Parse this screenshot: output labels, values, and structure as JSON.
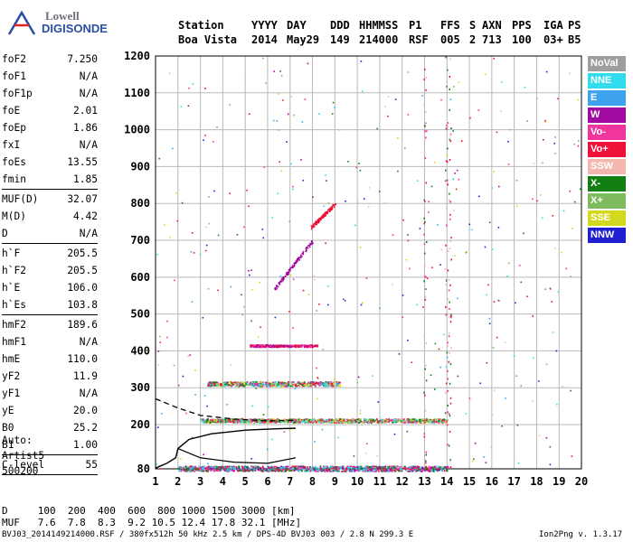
{
  "logo": {
    "line1": "Lowell",
    "line2": "DIGISONDE"
  },
  "header": {
    "labels": [
      "Station",
      "YYYY",
      "DAY",
      "DDD",
      "HHMMSS",
      "P1",
      "FFS",
      "S",
      "AXN",
      "PPS",
      "IGA",
      "PS"
    ],
    "values": [
      "Boa Vista",
      "2014",
      "May29",
      "149",
      "214000",
      "RSF",
      "005",
      "2",
      "713",
      "100",
      "03+",
      "B5"
    ]
  },
  "params": [
    {
      "k": "foF2",
      "v": "7.250"
    },
    {
      "k": "foF1",
      "v": "N/A"
    },
    {
      "k": "foF1p",
      "v": "N/A"
    },
    {
      "k": "foE",
      "v": "2.01"
    },
    {
      "k": "foEp",
      "v": "1.86"
    },
    {
      "k": "fxI",
      "v": "N/A"
    },
    {
      "k": "foEs",
      "v": "13.55"
    },
    {
      "k": "fmin",
      "v": "1.85"
    },
    {
      "sep": true
    },
    {
      "k": "MUF(D)",
      "v": "32.07"
    },
    {
      "k": "M(D)",
      "v": "4.42"
    },
    {
      "k": "D",
      "v": "N/A"
    },
    {
      "sep": true
    },
    {
      "k": "h`F",
      "v": "205.5"
    },
    {
      "k": "h`F2",
      "v": "205.5"
    },
    {
      "k": "h`E",
      "v": "106.0"
    },
    {
      "k": "h`Es",
      "v": "103.8"
    },
    {
      "sep": true
    },
    {
      "k": "hmF2",
      "v": "189.6"
    },
    {
      "k": "hmF1",
      "v": "N/A"
    },
    {
      "k": "hmE",
      "v": "110.0"
    },
    {
      "k": "yF2",
      "v": "11.9"
    },
    {
      "k": "yF1",
      "v": "N/A"
    },
    {
      "k": "yE",
      "v": "20.0"
    },
    {
      "k": "B0",
      "v": "25.2"
    },
    {
      "k": "B1",
      "v": "1.00"
    },
    {
      "sep": true
    },
    {
      "k": "C-level",
      "v": "55"
    },
    {
      "sep": true
    }
  ],
  "auto": [
    "Auto:",
    "Artist5",
    "500200"
  ],
  "legend": [
    {
      "label": "NoVal",
      "color": "#9e9e9e"
    },
    {
      "label": "NNE",
      "color": "#33dcec"
    },
    {
      "label": "E",
      "color": "#3fa2ee"
    },
    {
      "label": "W",
      "color": "#a10a9e"
    },
    {
      "label": "Vo-",
      "color": "#f0359f"
    },
    {
      "label": "Vo+",
      "color": "#ee1239"
    },
    {
      "label": "SSW",
      "color": "#f4b6ad"
    },
    {
      "label": "X-",
      "color": "#137e14"
    },
    {
      "label": "X+",
      "color": "#7ebb5c"
    },
    {
      "label": "SSE",
      "color": "#d3d91e"
    },
    {
      "label": "NNW",
      "color": "#2020d0"
    }
  ],
  "footer": {
    "d_line": "D     100  200  400  600  800 1000 1500 3000 [km]",
    "muf_line": "MUF   7.6  7.8  8.3  9.2 10.5 12.4 17.8 32.1 [MHz]",
    "info": "BVJ03_2014149214000.RSF / 380fx512h 50 kHz 2.5 km / DPS-4D BVJ03 003 / 2.8 N 299.3 E",
    "version": "Ion2Png v. 1.3.17"
  },
  "chart_data": {
    "type": "scatter",
    "xlim": [
      1,
      20
    ],
    "ylim": [
      80,
      1200
    ],
    "xticks": [
      1,
      2,
      3,
      4,
      5,
      6,
      7,
      8,
      9,
      10,
      11,
      12,
      13,
      14,
      15,
      16,
      17,
      18,
      19,
      20
    ],
    "yticks": [
      80,
      200,
      300,
      400,
      500,
      600,
      700,
      800,
      900,
      1000,
      1100,
      1200
    ],
    "grid": true,
    "traces": [
      {
        "name": "E/Es",
        "x_range": [
          2.0,
          14.0
        ],
        "h": 82,
        "spread": 14,
        "colors": [
          "#ee1239",
          "#f0359f",
          "#3fa2ee",
          "#33dcec",
          "#a10a9e",
          "#137e14"
        ]
      },
      {
        "name": "F",
        "x_range": [
          3.0,
          14.0
        ],
        "h": 212,
        "spread": 10,
        "colors": [
          "#ee1239",
          "#f0359f",
          "#33dcec",
          "#137e14",
          "#7ebb5c",
          "#d3d91e"
        ]
      },
      {
        "name": "F2x2",
        "x_range": [
          3.3,
          9.2
        ],
        "h": 312,
        "spread": 12,
        "colors": [
          "#ee1239",
          "#33dcec",
          "#3fa2ee",
          "#137e14",
          "#f0359f",
          "#d3d91e"
        ]
      },
      {
        "name": "F3x",
        "x_range": [
          5.2,
          8.2
        ],
        "h": 415,
        "spread": 6,
        "colors": [
          "#ee1239",
          "#f0359f",
          "#a10a9e"
        ]
      }
    ],
    "oblique_traces": [
      {
        "x": [
          6.3,
          8.0
        ],
        "h": [
          570,
          700
        ],
        "color": "#a10a9e"
      },
      {
        "x": [
          7.9,
          9.0
        ],
        "h": [
          735,
          800
        ],
        "color": "#ee1239"
      }
    ],
    "profile": {
      "x": [
        1.0,
        1.5,
        1.9,
        2.0,
        2.5,
        3.5,
        5.0,
        6.5,
        7.25
      ],
      "h": [
        82,
        95,
        110,
        135,
        160,
        175,
        185,
        189,
        190
      ]
    },
    "profile_ext": {
      "x": [
        2.0,
        3.0,
        4.5,
        6.0,
        7.25
      ],
      "h": [
        135,
        110,
        98,
        95,
        110
      ]
    },
    "dashed_curve": {
      "x": [
        1.0,
        2.0,
        3.0,
        4.5,
        6.0,
        7.25
      ],
      "h": [
        270,
        245,
        225,
        215,
        210,
        212
      ]
    }
  }
}
